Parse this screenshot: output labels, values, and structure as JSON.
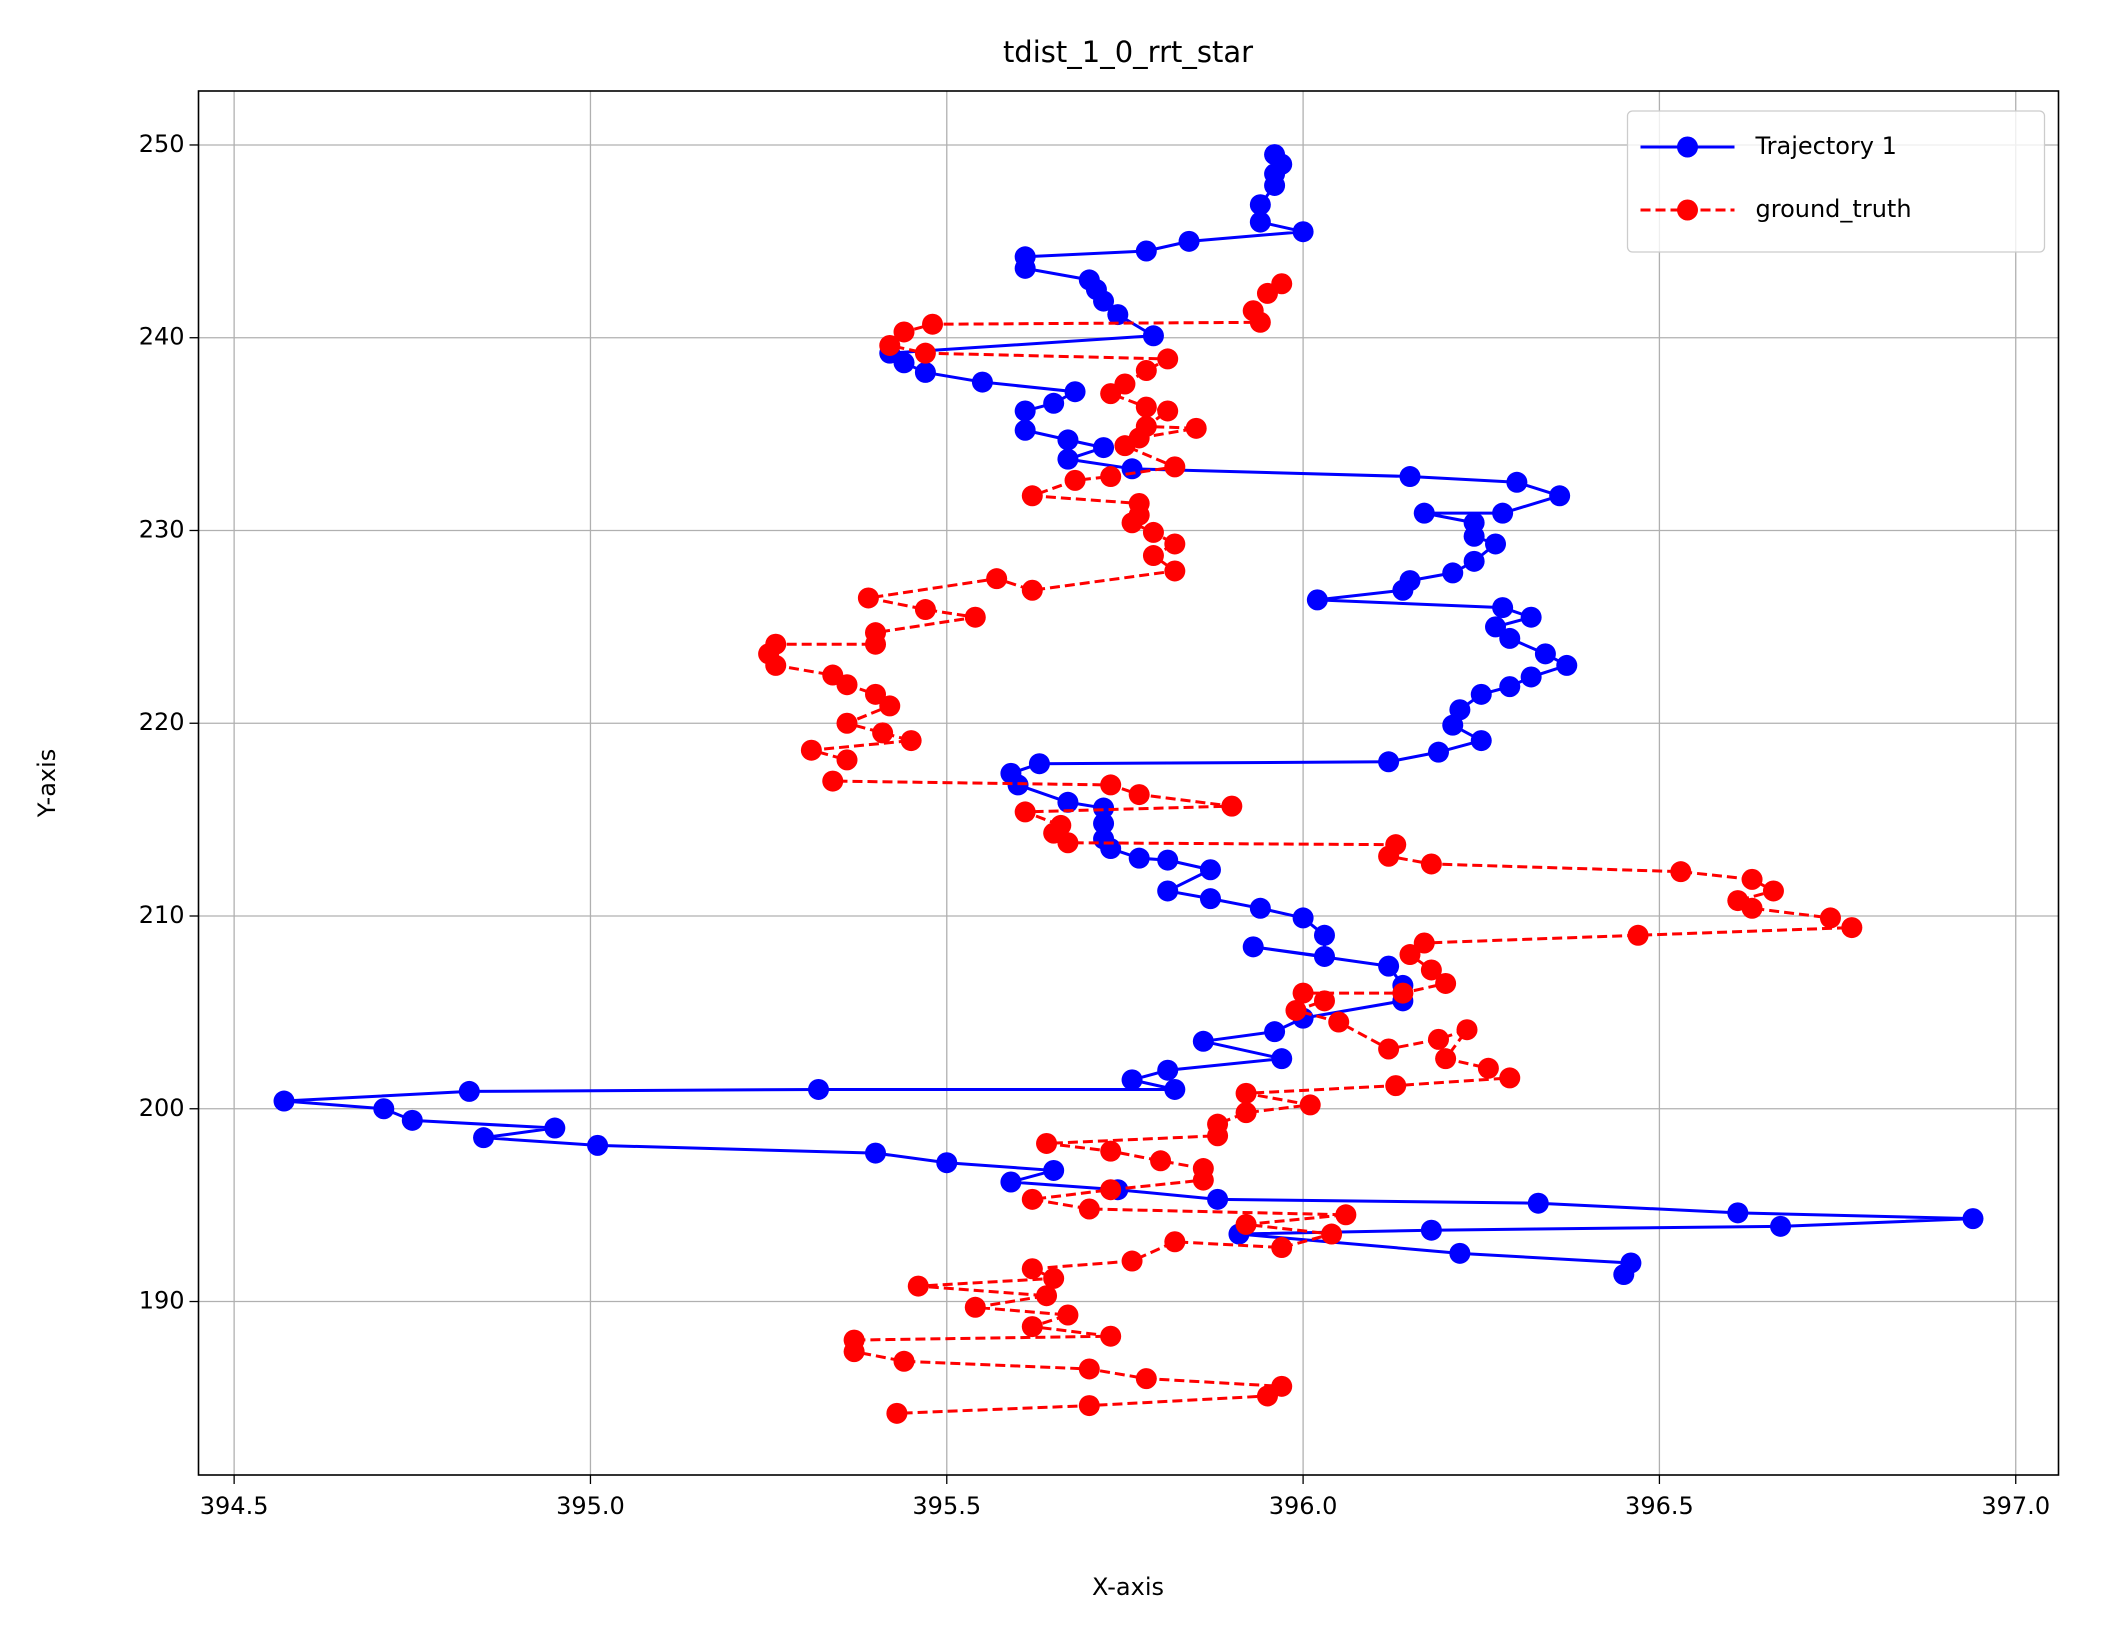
{
  "chart_data": {
    "type": "line",
    "title": "tdist_1_0_rrt_star",
    "x_label": "X-axis",
    "y_label": "Y-axis",
    "xlim": [
      394.45,
      397.06
    ],
    "ylim": [
      181.0,
      252.8
    ],
    "xticks": [
      394.5,
      {
        "value": 395,
        "label": "395.0"
      },
      395.5,
      {
        "value": 396,
        "label": "396.0"
      },
      396.5,
      {
        "value": 397,
        "label": "397.0"
      }
    ],
    "yticks": [
      190,
      200,
      210,
      220,
      230,
      240,
      250
    ],
    "grid": true,
    "legend": "upper right",
    "series": [
      {
        "name": "Trajectory 1",
        "color": "#0000ff",
        "linestyle": "solid",
        "marker": "o",
        "x": [
          395.96,
          395.97,
          395.96,
          395.96,
          395.94,
          395.94,
          396.0,
          395.84,
          395.78,
          395.61,
          395.61,
          395.7,
          395.71,
          395.72,
          395.74,
          395.79,
          395.42,
          395.44,
          395.47,
          395.55,
          395.68,
          395.65,
          395.61,
          395.61,
          395.67,
          395.72,
          395.67,
          395.76,
          396.15,
          396.3,
          396.36,
          396.28,
          396.17,
          396.24,
          396.24,
          396.27,
          396.24,
          396.21,
          396.15,
          396.14,
          396.02,
          396.28,
          396.32,
          396.27,
          396.29,
          396.34,
          396.37,
          396.32,
          396.29,
          396.25,
          396.22,
          396.21,
          396.25,
          396.19,
          396.12,
          395.63,
          395.59,
          395.6,
          395.67,
          395.72,
          395.72,
          395.72,
          395.73,
          395.77,
          395.81,
          395.87,
          395.81,
          395.87,
          395.94,
          396.0,
          396.03,
          396.03,
          395.93,
          396.12,
          396.14,
          396.14,
          396.0,
          395.96,
          395.86,
          395.97,
          395.81,
          395.76,
          395.82,
          395.32,
          394.83,
          394.57,
          394.71,
          394.75,
          394.95,
          394.85,
          395.01,
          395.4,
          395.5,
          395.65,
          395.59,
          395.74,
          395.88,
          396.33,
          396.61,
          396.94,
          396.67,
          396.18,
          395.91,
          396.22,
          396.46,
          396.45
        ],
        "values": [
          249.5,
          249.0,
          248.5,
          247.9,
          246.9,
          246.0,
          245.5,
          245.0,
          244.5,
          244.2,
          243.6,
          243.0,
          242.5,
          241.9,
          241.2,
          240.1,
          239.2,
          238.7,
          238.2,
          237.7,
          237.2,
          236.6,
          236.2,
          235.2,
          234.7,
          234.3,
          233.7,
          233.2,
          232.8,
          232.5,
          231.8,
          230.9,
          230.9,
          230.4,
          229.7,
          229.3,
          228.4,
          227.8,
          227.4,
          226.9,
          226.4,
          226.0,
          225.5,
          225.0,
          224.4,
          223.6,
          223.0,
          222.4,
          221.9,
          221.5,
          220.7,
          219.9,
          219.1,
          218.5,
          218.0,
          217.9,
          217.4,
          216.8,
          215.9,
          215.6,
          214.8,
          214.0,
          213.5,
          213.0,
          212.9,
          212.4,
          211.3,
          210.9,
          210.4,
          209.9,
          209.0,
          207.9,
          208.4,
          207.4,
          206.4,
          205.6,
          204.7,
          204.0,
          203.5,
          202.6,
          202.0,
          201.5,
          201.0,
          201.0,
          200.9,
          200.4,
          200.0,
          199.4,
          199.0,
          198.5,
          198.1,
          197.7,
          197.2,
          196.8,
          196.2,
          195.8,
          195.3,
          195.1,
          194.6,
          194.3,
          193.9,
          193.7,
          193.5,
          192.5,
          192.0,
          191.4
        ]
      },
      {
        "name": "ground_truth",
        "color": "#ff0000",
        "linestyle": "dashed",
        "marker": "o",
        "x": [
          395.97,
          395.95,
          395.93,
          395.94,
          395.48,
          395.44,
          395.42,
          395.47,
          395.81,
          395.78,
          395.75,
          395.73,
          395.78,
          395.81,
          395.78,
          395.85,
          395.77,
          395.75,
          395.82,
          395.73,
          395.68,
          395.62,
          395.77,
          395.77,
          395.76,
          395.79,
          395.82,
          395.79,
          395.82,
          395.62,
          395.57,
          395.39,
          395.47,
          395.54,
          395.4,
          395.4,
          395.26,
          395.25,
          395.26,
          395.34,
          395.36,
          395.4,
          395.42,
          395.36,
          395.41,
          395.45,
          395.31,
          395.36,
          395.34,
          395.73,
          395.77,
          395.9,
          395.61,
          395.66,
          395.65,
          395.67,
          396.13,
          396.12,
          396.18,
          396.53,
          396.63,
          396.66,
          396.61,
          396.63,
          396.74,
          396.77,
          396.47,
          396.17,
          396.15,
          396.18,
          396.2,
          396.14,
          396.0,
          396.03,
          395.99,
          396.05,
          396.12,
          396.19,
          396.23,
          396.2,
          396.26,
          396.29,
          396.13,
          395.92,
          396.01,
          395.92,
          395.88,
          395.88,
          395.64,
          395.73,
          395.8,
          395.86,
          395.86,
          395.73,
          395.62,
          395.7,
          396.06,
          395.92,
          396.04,
          395.97,
          395.82,
          395.76,
          395.62,
          395.65,
          395.46,
          395.64,
          395.54,
          395.67,
          395.62,
          395.73,
          395.37,
          395.37,
          395.44,
          395.7,
          395.78,
          395.97,
          395.95,
          395.7,
          395.43
        ],
        "values": [
          242.8,
          242.3,
          241.4,
          240.8,
          240.7,
          240.3,
          239.6,
          239.2,
          238.9,
          238.3,
          237.6,
          237.1,
          236.4,
          236.2,
          235.4,
          235.3,
          234.8,
          234.4,
          233.3,
          232.8,
          232.6,
          231.8,
          231.4,
          230.8,
          230.4,
          229.9,
          229.3,
          228.7,
          227.9,
          226.9,
          227.5,
          226.5,
          225.9,
          225.5,
          224.7,
          224.1,
          224.1,
          223.6,
          223.0,
          222.5,
          222.0,
          221.5,
          220.9,
          220.0,
          219.5,
          219.1,
          218.6,
          218.1,
          217.0,
          216.8,
          216.3,
          215.7,
          215.4,
          214.7,
          214.3,
          213.8,
          213.7,
          213.1,
          212.7,
          212.3,
          211.9,
          211.3,
          210.8,
          210.4,
          209.9,
          209.4,
          209.0,
          208.6,
          208.0,
          207.2,
          206.5,
          206.0,
          206.0,
          205.6,
          205.1,
          204.5,
          203.1,
          203.6,
          204.1,
          202.6,
          202.1,
          201.6,
          201.2,
          200.8,
          200.2,
          199.8,
          199.2,
          198.6,
          198.2,
          197.8,
          197.3,
          196.9,
          196.3,
          195.8,
          195.3,
          194.8,
          194.5,
          194.0,
          193.5,
          192.8,
          193.1,
          192.1,
          191.7,
          191.2,
          190.8,
          190.3,
          189.7,
          189.3,
          188.7,
          188.2,
          188.0,
          187.4,
          186.9,
          186.5,
          186.0,
          185.6,
          185.1,
          184.6,
          184.2
        ]
      }
    ]
  }
}
